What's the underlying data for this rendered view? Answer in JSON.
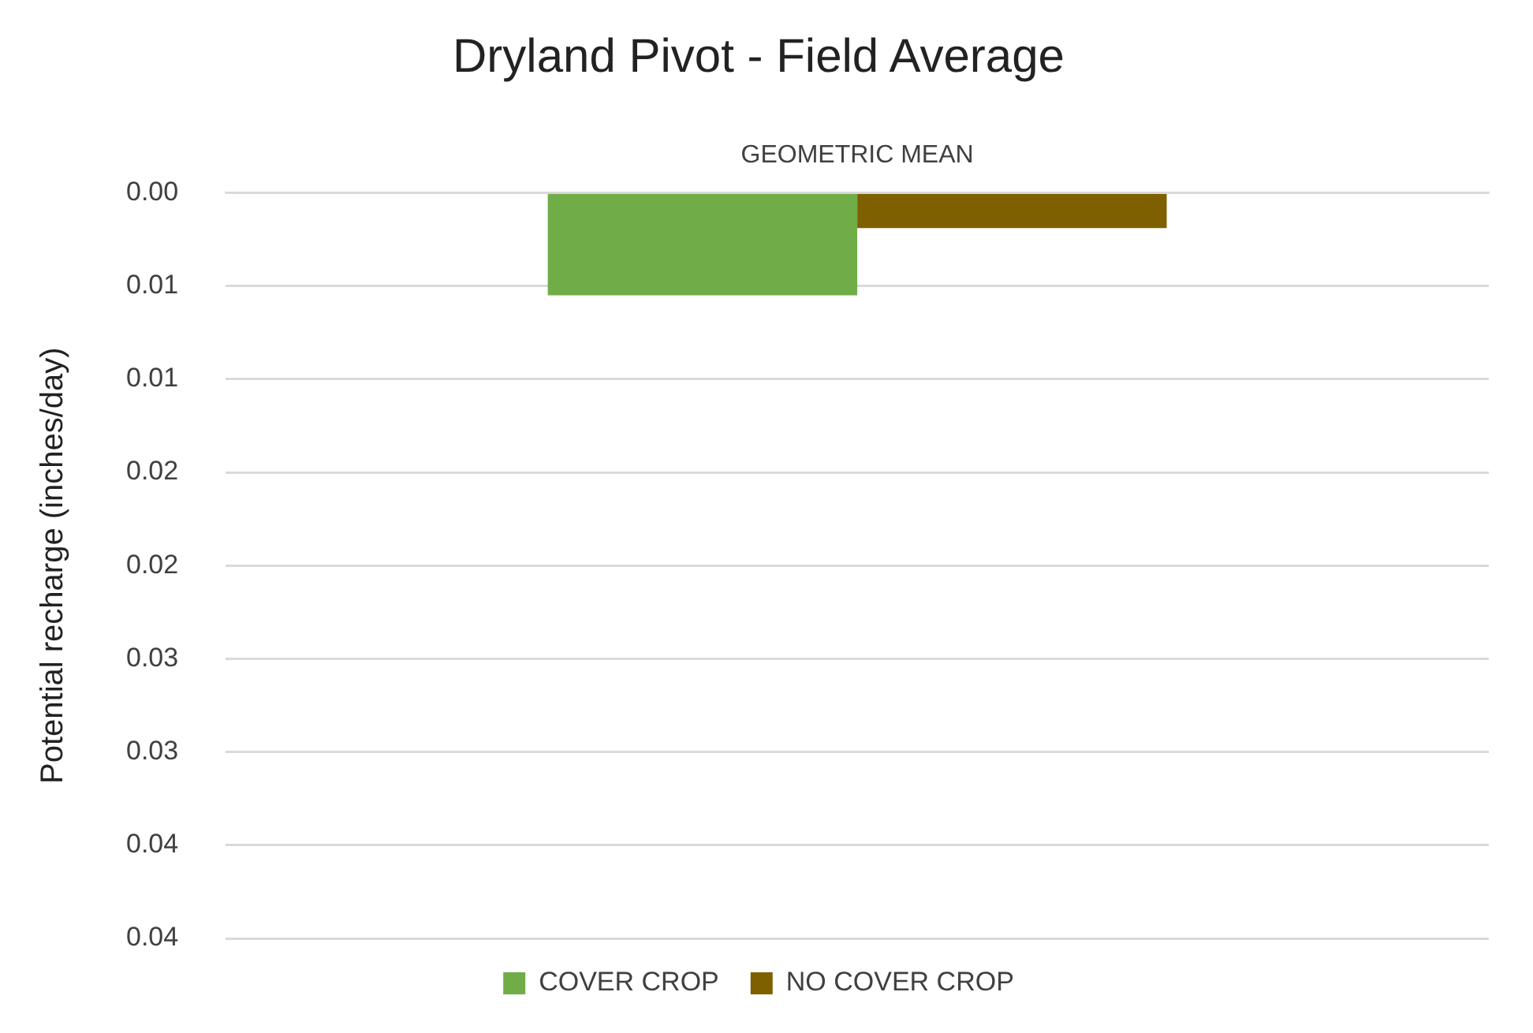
{
  "chart_data": {
    "type": "bar",
    "title": "Dryland Pivot - Field Average",
    "ylabel": "Potential recharge (inches/day)",
    "categories": [
      "GEOMETRIC MEAN"
    ],
    "series": [
      {
        "name": "COVER CROP",
        "color": "#70ad47",
        "values": [
          0.0055
        ]
      },
      {
        "name": "NO COVER CROP",
        "color": "#7f6000",
        "values": [
          0.0019
        ]
      }
    ],
    "ylim": [
      0.04,
      0
    ],
    "yticks": [
      {
        "value": 0,
        "label": "0.00"
      },
      {
        "value": 0.005,
        "label": "0.01"
      },
      {
        "value": 0.01,
        "label": "0.01"
      },
      {
        "value": 0.015,
        "label": "0.02"
      },
      {
        "value": 0.02,
        "label": "0.02"
      },
      {
        "value": 0.025,
        "label": "0.03"
      },
      {
        "value": 0.03,
        "label": "0.03"
      },
      {
        "value": 0.035,
        "label": "0.04"
      },
      {
        "value": 0.04,
        "label": "0.04"
      }
    ],
    "grid": "y",
    "legend": "bottom"
  }
}
